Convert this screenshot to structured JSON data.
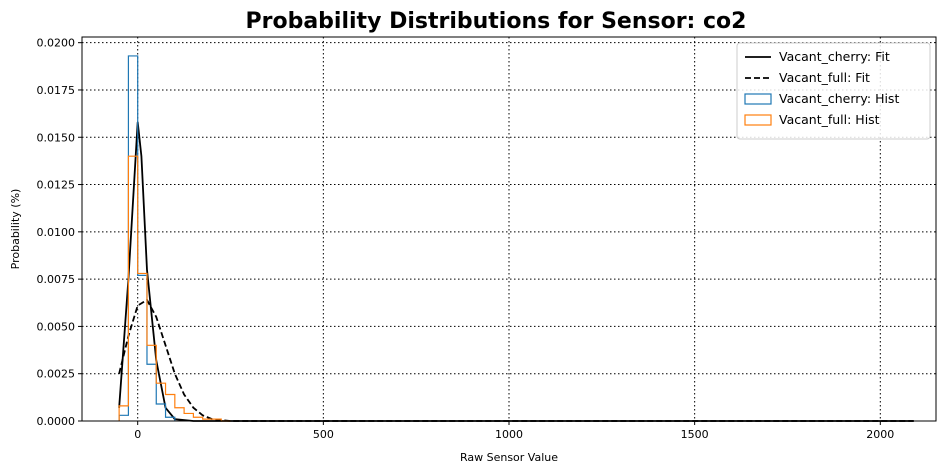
{
  "chart_data": {
    "type": "line",
    "title": "Probability Distributions for Sensor: co2",
    "xlabel": "Raw Sensor Value",
    "ylabel": "Probability (%)",
    "xlim": [
      -150,
      2150
    ],
    "ylim": [
      0,
      0.0203
    ],
    "xticks": [
      0,
      500,
      1000,
      1500,
      2000
    ],
    "yticks": [
      0.0,
      0.0025,
      0.005,
      0.0075,
      0.01,
      0.0125,
      0.015,
      0.0175,
      0.02
    ],
    "ytick_labels": [
      "0.0000",
      "0.0025",
      "0.0050",
      "0.0075",
      "0.0100",
      "0.0125",
      "0.0150",
      "0.0175",
      "0.0200"
    ],
    "grid": true,
    "legend_position": "top-right",
    "series": [
      {
        "name": "Vacant_cherry: Fit",
        "kind": "line",
        "style": "solid",
        "color": "#000000",
        "x": [
          -50,
          -25,
          0,
          10,
          25,
          50,
          75,
          100,
          150,
          300,
          600,
          1000,
          1500,
          2090
        ],
        "y": [
          0.0007,
          0.0075,
          0.0158,
          0.014,
          0.008,
          0.0032,
          0.0007,
          0.0001,
          0.0,
          0.0,
          0.0,
          0.0,
          0.0,
          0.0
        ]
      },
      {
        "name": "Vacant_full: Fit",
        "kind": "line",
        "style": "dashed",
        "color": "#000000",
        "x": [
          -50,
          -25,
          0,
          25,
          50,
          75,
          100,
          125,
          150,
          175,
          200,
          250,
          300,
          500,
          1000,
          1500,
          2090
        ],
        "y": [
          0.0025,
          0.0045,
          0.0061,
          0.0064,
          0.0055,
          0.004,
          0.0025,
          0.0014,
          0.0007,
          0.0003,
          0.0001,
          0.0,
          0.0,
          0.0,
          0.0,
          0.0,
          0.0
        ]
      },
      {
        "name": "Vacant_cherry: Hist",
        "kind": "step-hist",
        "color": "#1f77b4",
        "edges": [
          -50,
          -25,
          0,
          25,
          50,
          75,
          100
        ],
        "values": [
          0.0003,
          0.0193,
          0.0077,
          0.003,
          0.0009,
          0.0002
        ]
      },
      {
        "name": "Vacant_full: Hist",
        "kind": "step-hist",
        "color": "#ff7f0e",
        "edges": [
          -50,
          -25,
          0,
          25,
          50,
          75,
          100,
          125,
          150,
          175,
          200,
          225,
          250
        ],
        "values": [
          0.0008,
          0.014,
          0.0078,
          0.004,
          0.002,
          0.0014,
          0.0007,
          0.0004,
          0.0002,
          0.0001,
          0.0001,
          0.0
        ]
      }
    ]
  }
}
